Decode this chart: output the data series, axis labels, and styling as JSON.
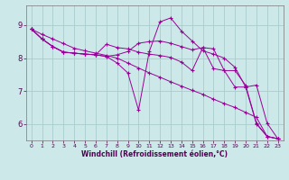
{
  "xlabel": "Windchill (Refroidissement éolien,°C)",
  "bg_color": "#cce8e8",
  "grid_color": "#aacccc",
  "line_color": "#990099",
  "xlim": [
    -0.5,
    23.5
  ],
  "ylim": [
    5.5,
    9.6
  ],
  "yticks": [
    6,
    7,
    8,
    9
  ],
  "xticks": [
    0,
    1,
    2,
    3,
    4,
    5,
    6,
    7,
    8,
    9,
    10,
    11,
    12,
    13,
    14,
    15,
    16,
    17,
    18,
    19,
    20,
    21,
    22,
    23
  ],
  "series": [
    [
      8.88,
      8.72,
      8.58,
      8.44,
      8.3,
      8.22,
      8.15,
      8.08,
      8.0,
      7.85,
      7.7,
      7.55,
      7.42,
      7.28,
      7.15,
      7.02,
      6.9,
      6.75,
      6.62,
      6.5,
      6.35,
      6.2,
      5.62,
      5.55
    ],
    [
      8.88,
      8.58,
      8.35,
      8.18,
      8.15,
      8.12,
      8.1,
      8.05,
      7.85,
      7.55,
      6.42,
      8.2,
      9.1,
      9.22,
      8.82,
      8.52,
      8.22,
      8.12,
      8.0,
      7.72,
      7.12,
      6.0,
      5.62,
      5.55
    ],
    [
      8.88,
      8.58,
      8.35,
      8.18,
      8.15,
      8.12,
      8.1,
      8.05,
      8.1,
      8.2,
      8.45,
      8.5,
      8.52,
      8.45,
      8.35,
      8.25,
      8.32,
      8.28,
      7.62,
      7.62,
      7.17,
      6.02,
      5.62,
      5.55
    ],
    [
      8.88,
      8.58,
      8.35,
      8.18,
      8.15,
      8.12,
      8.1,
      8.42,
      8.32,
      8.28,
      8.18,
      8.12,
      8.08,
      8.02,
      7.88,
      7.62,
      8.32,
      7.68,
      7.62,
      7.12,
      7.12,
      7.18,
      6.02,
      5.55
    ]
  ]
}
